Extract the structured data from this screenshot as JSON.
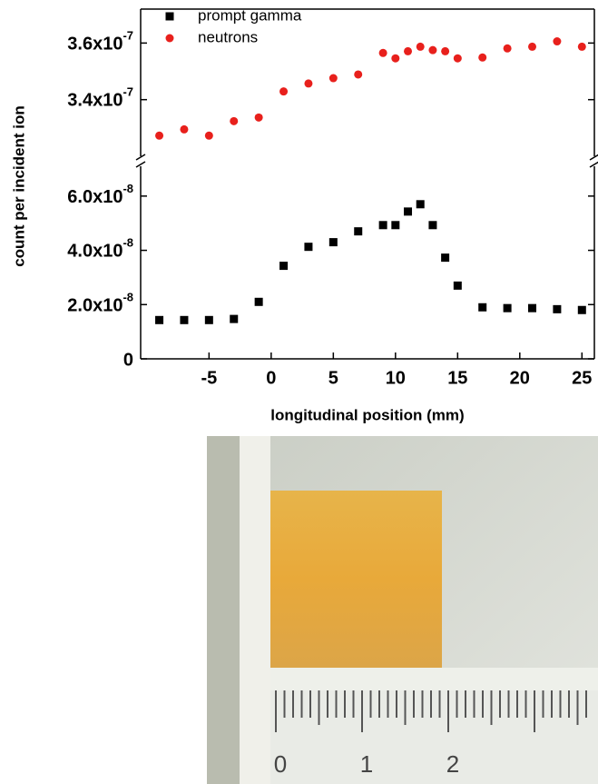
{
  "chart_data": [
    {
      "type": "scatter",
      "x": [
        -9,
        -7,
        -5,
        -3,
        -1,
        1,
        3,
        5,
        7,
        9,
        10,
        11,
        12,
        13,
        14,
        15,
        17,
        19,
        21,
        23,
        25
      ],
      "series": [
        {
          "name": "neutrons",
          "color": "#e8201c",
          "values": [
            3.273e-07,
            3.295e-07,
            3.273e-07,
            3.324e-07,
            3.337e-07,
            3.429e-07,
            3.457e-07,
            3.476e-07,
            3.489e-07,
            3.565e-07,
            3.546e-07,
            3.571e-07,
            3.587e-07,
            3.575e-07,
            3.571e-07,
            3.546e-07,
            3.549e-07,
            3.581e-07,
            3.587e-07,
            3.606e-07,
            3.587e-07
          ]
        }
      ],
      "xlim": [
        -10.5,
        26
      ],
      "ylim": [
        3.2e-07,
        3.72e-07
      ],
      "yticks": [
        {
          "value": 3.4e-07,
          "label": "3.4x10-7"
        },
        {
          "value": 3.6e-07,
          "label": "3.6x10-7"
        }
      ],
      "legend": "upper left"
    },
    {
      "type": "scatter",
      "x": [
        -9,
        -7,
        -5,
        -3,
        -1,
        1,
        3,
        5,
        7,
        9,
        10,
        11,
        12,
        13,
        14,
        15,
        17,
        19,
        21,
        23,
        25
      ],
      "series": [
        {
          "name": "prompt gamma",
          "color": "#000000",
          "values": [
            1.43e-08,
            1.43e-08,
            1.43e-08,
            1.47e-08,
            2.1e-08,
            3.43e-08,
            4.13e-08,
            4.3e-08,
            4.7e-08,
            4.93e-08,
            4.93e-08,
            5.43e-08,
            5.7e-08,
            4.93e-08,
            3.73e-08,
            2.7e-08,
            1.9e-08,
            1.87e-08,
            1.87e-08,
            1.83e-08,
            1.8e-08
          ]
        }
      ],
      "xlim": [
        -10.5,
        26
      ],
      "ylim": [
        0,
        7.1e-08
      ],
      "xticks": [
        -5,
        0,
        5,
        10,
        15,
        20,
        25
      ],
      "yticks": [
        0,
        {
          "value": 2e-08,
          "label": "2.0x10-8"
        },
        {
          "value": 4e-08,
          "label": "4.0x10-8"
        },
        {
          "value": 6e-08,
          "label": "6.0x10-8"
        }
      ],
      "xlabel": "longitudinal position (mm)",
      "ylabel": "count per incident ion"
    }
  ],
  "photo": {
    "ruler_labels": [
      "0",
      "1",
      "2"
    ]
  }
}
